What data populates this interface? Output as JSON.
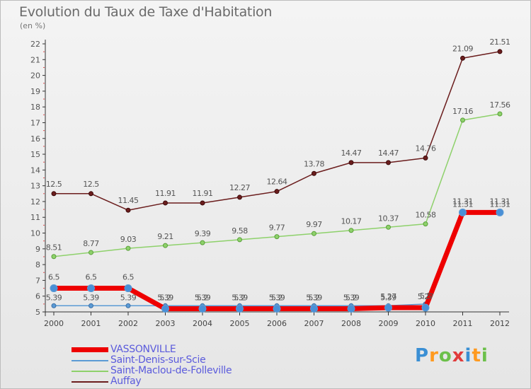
{
  "chart": {
    "title": "Evolution du Taux de Taxe d'Habitation",
    "unit_label": "(en %)"
  },
  "logo": {
    "text": "Proxiti",
    "letters": [
      "P",
      "r",
      "o",
      "x",
      "i",
      "t",
      "i"
    ],
    "colors": [
      "#3a8fd4",
      "#ff9a1f",
      "#6cc04a",
      "#e03b3b",
      "#3a8fd4",
      "#ff9a1f",
      "#6cc04a"
    ]
  },
  "chart_data": {
    "type": "line",
    "title": "Evolution du Taux de Taxe d'Habitation",
    "ylabel": "(en %)",
    "xlabel": "",
    "x": [
      "2000",
      "2001",
      "2002",
      "2003",
      "2004",
      "2005",
      "2006",
      "2007",
      "2008",
      "2009",
      "2010",
      "2011",
      "2012"
    ],
    "ylim": [
      5,
      22
    ],
    "yticks": [
      5,
      6,
      7,
      8,
      9,
      10,
      11,
      12,
      13,
      14,
      15,
      16,
      17,
      18,
      19,
      20,
      21,
      22
    ],
    "grid": false,
    "legend_position": "bottom-left",
    "series": [
      {
        "name": "VASSONVILLE",
        "color": "#ee0000",
        "values": [
          6.5,
          6.5,
          6.5,
          5.2,
          5.2,
          5.2,
          5.2,
          5.2,
          5.2,
          5.27,
          5.27,
          11.31,
          11.31
        ],
        "labels": [
          "6.5",
          "6.5",
          "6.5",
          "5.2",
          "5.2",
          "5.2",
          "5.2",
          "5.2",
          "5.2",
          "5.27",
          "5.27",
          "11.31",
          "11.31"
        ]
      },
      {
        "name": "Saint-Denis-sur-Scie",
        "color": "#5b9bd5",
        "values": [
          5.39,
          5.39,
          5.39,
          5.39,
          5.39,
          5.39,
          5.39,
          5.39,
          5.39,
          5.39,
          5.5,
          11.31,
          11.31
        ],
        "labels": [
          "5.39",
          "5.39",
          "5.39",
          "5.39",
          "5.39",
          "5.39",
          "5.39",
          "5.39",
          "5.39",
          "5.39",
          "5.5",
          "11.31",
          "11.31"
        ]
      },
      {
        "name": "Saint-Maclou-de-Folleville",
        "color": "#8ed16b",
        "values": [
          8.51,
          8.77,
          9.03,
          9.21,
          9.39,
          9.58,
          9.77,
          9.97,
          10.17,
          10.37,
          10.58,
          17.16,
          17.56
        ],
        "labels": [
          "8.51",
          "8.77",
          "9.03",
          "9.21",
          "9.39",
          "9.58",
          "9.77",
          "9.97",
          "10.17",
          "10.37",
          "10.58",
          "17.16",
          "17.56"
        ]
      },
      {
        "name": "Auffay",
        "color": "#6b1d1d",
        "values": [
          12.5,
          12.5,
          11.45,
          11.91,
          11.91,
          12.27,
          12.64,
          13.78,
          14.47,
          14.47,
          14.76,
          21.09,
          21.51
        ],
        "labels": [
          "12.5",
          "12.5",
          "11.45",
          "11.91",
          "11.91",
          "12.27",
          "12.64",
          "13.78",
          "14.47",
          "14.47",
          "14.76",
          "21.09",
          "21.51"
        ]
      }
    ]
  }
}
